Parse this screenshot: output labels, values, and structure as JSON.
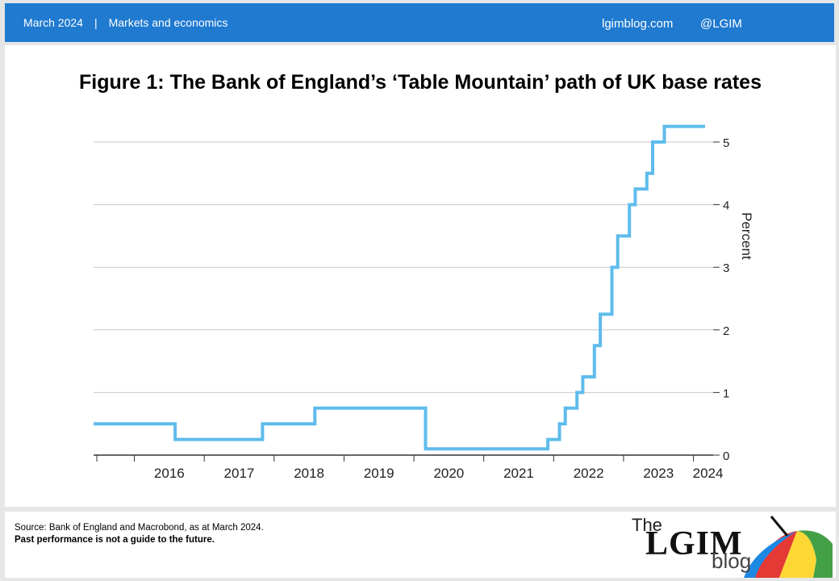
{
  "header": {
    "date": "March 2024",
    "separator": "|",
    "category": "Markets and economics",
    "site": "lgimblog.com",
    "handle": "@LGIM"
  },
  "figure": {
    "title": "Figure 1: The Bank of England’s ‘Table Mountain’ path of UK base rates"
  },
  "chart_data": {
    "type": "line",
    "step": true,
    "title": "Figure 1: The Bank of England’s ‘Table Mountain’ path of UK base rates",
    "ylabel": "Percent",
    "xlabel": "",
    "ylim": [
      0,
      5.25
    ],
    "xlim": [
      "2015-06",
      "2024-03"
    ],
    "yticks": [
      0,
      1,
      2,
      3,
      4,
      5
    ],
    "y_axis_side": "right",
    "grid": "horizontal",
    "line_color": "#5ebcec",
    "xtick_labels": [
      "2016",
      "2017",
      "2018",
      "2019",
      "2020",
      "2021",
      "2022",
      "2023",
      "2024"
    ],
    "series": [
      {
        "name": "",
        "points": [
          [
            "2015-06",
            0.5
          ],
          [
            "2016-08",
            0.5
          ],
          [
            "2016-08",
            0.25
          ],
          [
            "2017-11",
            0.25
          ],
          [
            "2017-11",
            0.5
          ],
          [
            "2018-08",
            0.5
          ],
          [
            "2018-08",
            0.75
          ],
          [
            "2020-03",
            0.75
          ],
          [
            "2020-03",
            0.25
          ],
          [
            "2020-03",
            0.1
          ],
          [
            "2021-12",
            0.1
          ],
          [
            "2021-12",
            0.25
          ],
          [
            "2022-02",
            0.25
          ],
          [
            "2022-02",
            0.5
          ],
          [
            "2022-03",
            0.5
          ],
          [
            "2022-03",
            0.75
          ],
          [
            "2022-05",
            0.75
          ],
          [
            "2022-05",
            1.0
          ],
          [
            "2022-06",
            1.0
          ],
          [
            "2022-06",
            1.25
          ],
          [
            "2022-08",
            1.25
          ],
          [
            "2022-08",
            1.75
          ],
          [
            "2022-09",
            1.75
          ],
          [
            "2022-09",
            2.25
          ],
          [
            "2022-11",
            2.25
          ],
          [
            "2022-11",
            3.0
          ],
          [
            "2022-12",
            3.0
          ],
          [
            "2022-12",
            3.5
          ],
          [
            "2023-02",
            3.5
          ],
          [
            "2023-02",
            4.0
          ],
          [
            "2023-03",
            4.0
          ],
          [
            "2023-03",
            4.25
          ],
          [
            "2023-05",
            4.25
          ],
          [
            "2023-05",
            4.5
          ],
          [
            "2023-06",
            4.5
          ],
          [
            "2023-06",
            5.0
          ],
          [
            "2023-08",
            5.0
          ],
          [
            "2023-08",
            5.25
          ],
          [
            "2024-03",
            5.25
          ]
        ]
      }
    ]
  },
  "footer": {
    "source": "Source: Bank of England and Macrobond, as at March 2024.",
    "disclaimer": "Past performance is not a guide to the future.",
    "logo_the": "The",
    "logo_lgim": "LGIM",
    "logo_blog": "blog"
  }
}
